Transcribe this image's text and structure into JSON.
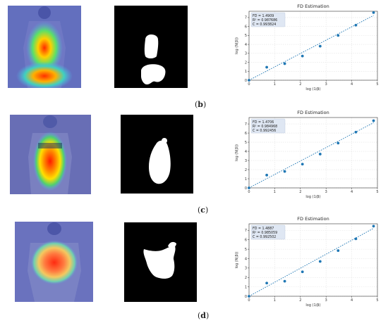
{
  "panels": [
    {
      "label": "b",
      "paren_open": "(",
      "paren_close": ")"
    },
    {
      "label": "c",
      "paren_open": "(",
      "paren_close": ")"
    },
    {
      "label": "d",
      "paren_open": "(",
      "paren_close": ")"
    }
  ],
  "chart_data": [
    {
      "type": "scatter",
      "title": "FD Estimation",
      "xlabel": "log (1/β)",
      "ylabel": "log (N(β))",
      "xlim": [
        0,
        5
      ],
      "ylim": [
        0,
        7.7
      ],
      "xticks": [
        0,
        1,
        2,
        3,
        4,
        5
      ],
      "yticks": [
        0,
        1,
        2,
        3,
        4,
        5,
        6,
        7
      ],
      "annotation": [
        "FD = 1.4909",
        "R² = 0.987686",
        "C = 0.993824"
      ],
      "points": {
        "x": [
          0,
          0.69,
          1.39,
          2.08,
          2.77,
          3.47,
          4.16,
          4.85
        ],
        "y": [
          0,
          1.45,
          1.85,
          2.7,
          3.8,
          5.0,
          6.15,
          7.55
        ]
      },
      "fit": {
        "slope": 1.4909,
        "intercept": 0.0
      },
      "grid": true,
      "point_color": "#1f77b4"
    },
    {
      "type": "scatter",
      "title": "FD Estimation",
      "xlabel": "log (1/β)",
      "ylabel": "log (N(β))",
      "xlim": [
        0,
        5
      ],
      "ylim": [
        0,
        7.7
      ],
      "xticks": [
        0,
        1,
        2,
        3,
        4,
        5
      ],
      "yticks": [
        0,
        1,
        2,
        3,
        4,
        5,
        6,
        7
      ],
      "annotation": [
        "FD = 1.4706",
        "R² = 0.984968",
        "C = 0.992456"
      ],
      "points": {
        "x": [
          0,
          0.69,
          1.39,
          2.08,
          2.77,
          3.47,
          4.16,
          4.85
        ],
        "y": [
          0,
          1.4,
          1.8,
          2.6,
          3.7,
          4.9,
          6.1,
          7.35
        ]
      },
      "fit": {
        "slope": 1.4706,
        "intercept": 0.0
      },
      "grid": true,
      "point_color": "#1f77b4"
    },
    {
      "type": "scatter",
      "title": "FD Estimation",
      "xlabel": "log (1/β)",
      "ylabel": "log (N(β))",
      "xlim": [
        0,
        5
      ],
      "ylim": [
        0,
        7.7
      ],
      "xticks": [
        0,
        1,
        2,
        3,
        4,
        5
      ],
      "yticks": [
        0,
        1,
        2,
        3,
        4,
        5,
        6,
        7
      ],
      "annotation": [
        "FD = 1.4887",
        "R² = 0.985059",
        "C = 0.992502"
      ],
      "points": {
        "x": [
          0,
          0.69,
          1.39,
          2.08,
          2.77,
          3.47,
          4.16,
          4.85
        ],
        "y": [
          0,
          1.4,
          1.6,
          2.6,
          3.7,
          4.85,
          6.1,
          7.45
        ]
      },
      "fit": {
        "slope": 1.4887,
        "intercept": 0.0
      },
      "grid": true,
      "point_color": "#1f77b4"
    }
  ]
}
